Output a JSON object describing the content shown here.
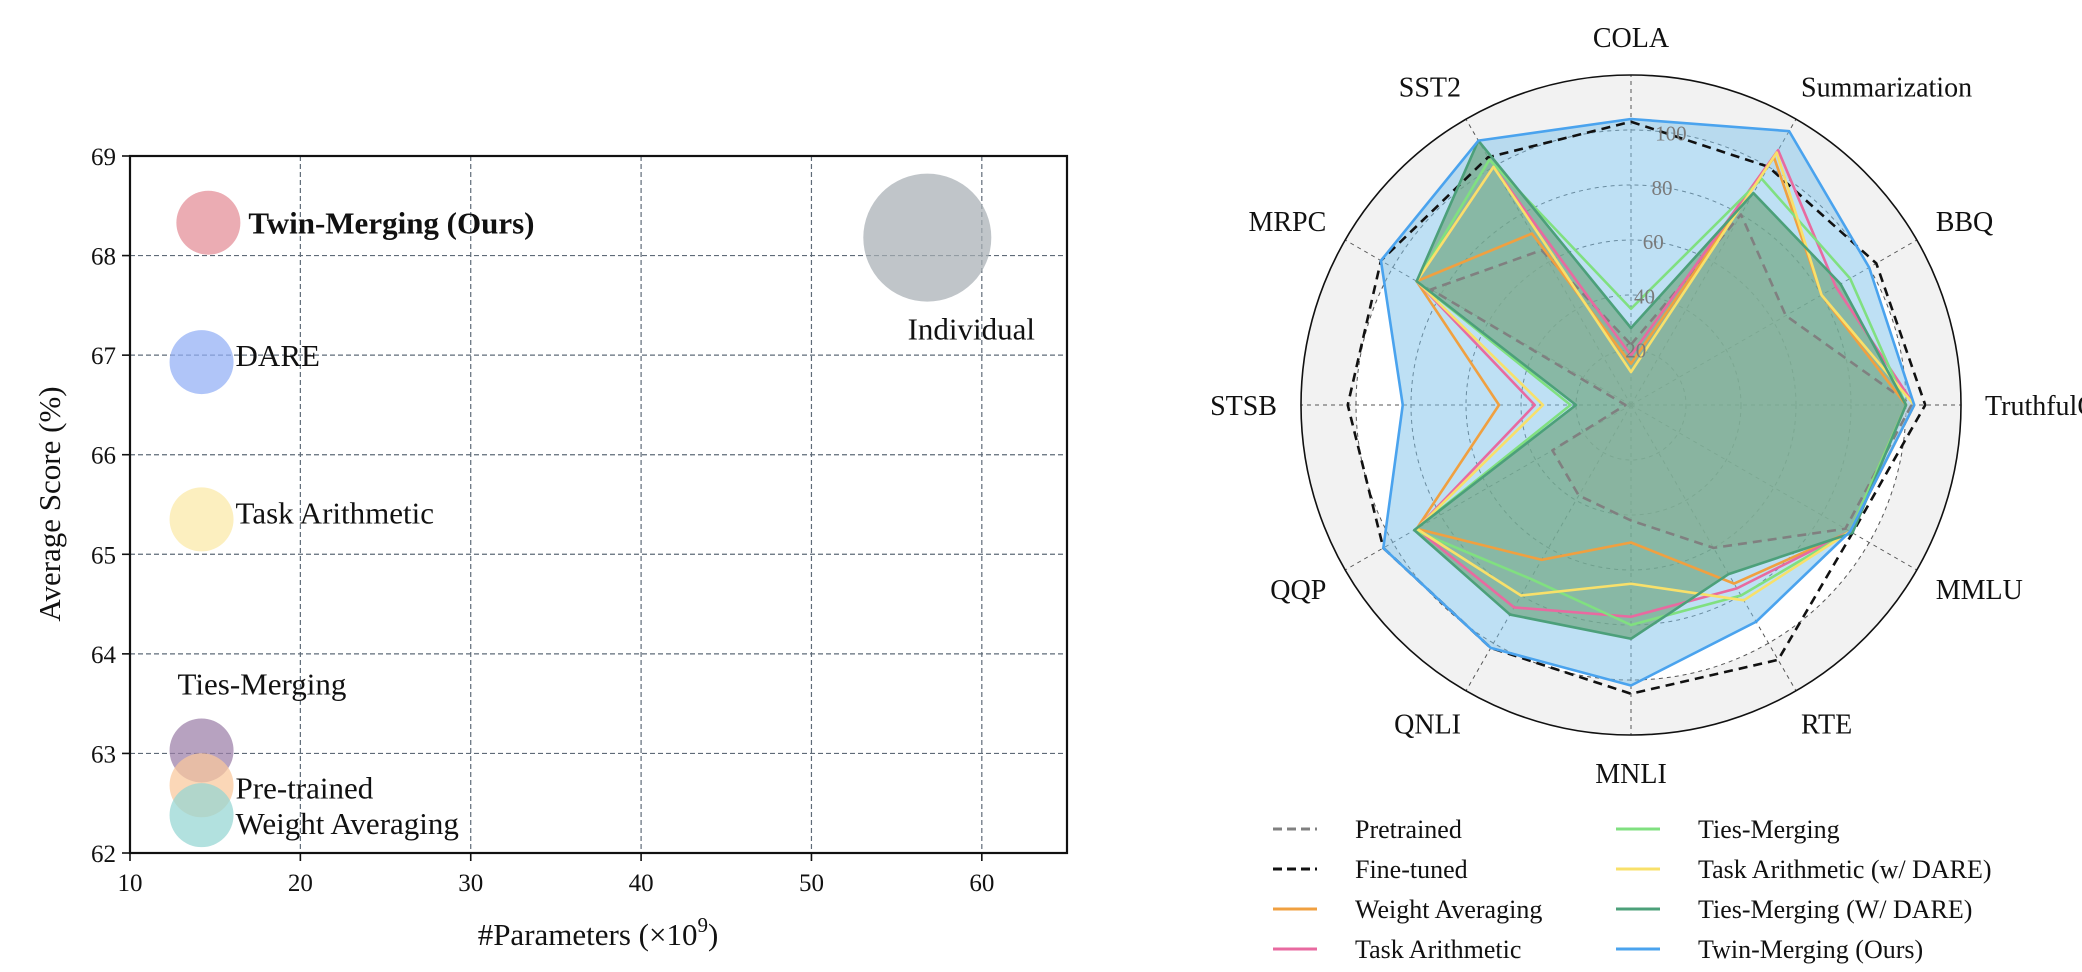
{
  "chart_data": [
    {
      "type": "scatter",
      "xlabel": "#Parameters (×10",
      "xlabel_sup": "9",
      "xlabel_end": ")",
      "ylabel": "Average Score (%)",
      "xlim": [
        10,
        65
      ],
      "ylim": [
        62,
        69
      ],
      "x_ticks": [
        "10",
        "20",
        "30",
        "40",
        "50",
        "60"
      ],
      "y_ticks": [
        "62",
        "63",
        "64",
        "65",
        "66",
        "67",
        "68",
        "69"
      ],
      "grid": true,
      "points": [
        {
          "label": "Twin-Merging (Ours)",
          "x": 14.6,
          "y": 68.33,
          "size": 1.0,
          "color": "#e38c95",
          "bold": true
        },
        {
          "label": "DARE",
          "x": 14.2,
          "y": 66.93,
          "size": 1.0,
          "color": "#92aef5"
        },
        {
          "label": "Task Arithmetic",
          "x": 14.2,
          "y": 65.35,
          "size": 1.0,
          "color": "#fbe9a6"
        },
        {
          "label": "Ties-Merging",
          "x": 14.2,
          "y": 63.03,
          "size": 1.0,
          "color": "#9b7ea7"
        },
        {
          "label": "Pre-trained",
          "x": 14.2,
          "y": 62.68,
          "size": 1.0,
          "color": "#f9c89b"
        },
        {
          "label": "Weight Averaging",
          "x": 14.2,
          "y": 62.38,
          "size": 1.0,
          "color": "#94d5d2"
        },
        {
          "label": "Individual",
          "x": 56.8,
          "y": 68.18,
          "size": 2.0,
          "color": "#a8aeb4"
        }
      ]
    },
    {
      "type": "radar",
      "categories": [
        "COLA",
        "Summarization",
        "BBQ",
        "TruthfulQA",
        "MMLU",
        "RTE",
        "MNLI",
        "QNLI",
        "QQP",
        "STSB",
        "MRPC",
        "SST2"
      ],
      "r_ticks": [
        "20",
        "40",
        "60",
        "80",
        "100"
      ],
      "r_max": 120,
      "series": [
        {
          "name": "Pretrained",
          "color": "#808080",
          "dash": "dashed",
          "fill": false,
          "values": [
            22,
            80,
            65,
            102,
            90,
            60,
            42,
            38,
            33,
            2,
            84,
            65
          ]
        },
        {
          "name": "Fine-tuned",
          "color": "#111111",
          "dash": "dashed",
          "fill": false,
          "values": [
            103,
            100,
            103,
            107,
            93,
            107,
            105,
            102,
            104,
            103,
            105,
            104
          ]
        },
        {
          "name": "Weight Averaging",
          "color": "#f0a040",
          "dash": "solid",
          "fill": false,
          "values": [
            15,
            104,
            80,
            100,
            92,
            75,
            50,
            65,
            90,
            48,
            90,
            72
          ]
        },
        {
          "name": "Task Arithmetic",
          "color": "#e86aa0",
          "dash": "solid",
          "fill": false,
          "values": [
            18,
            107,
            86,
            103,
            92,
            77,
            77,
            85,
            90,
            35,
            90,
            100
          ]
        },
        {
          "name": "Ties-Merging",
          "color": "#80e080",
          "dash": "solid",
          "fill": false,
          "values": [
            35,
            95,
            92,
            100,
            92,
            80,
            80,
            73,
            91,
            22,
            90,
            103
          ]
        },
        {
          "name": "Task Arithmetic (w/ DARE)",
          "color": "#f8e06a",
          "dash": "solid",
          "fill": false,
          "values": [
            12,
            106,
            80,
            103,
            92,
            82,
            65,
            80,
            90,
            32,
            90,
            100
          ]
        },
        {
          "name": "Ties-Merging (W/ DARE)",
          "color": "#4ca07a",
          "dash": "solid",
          "fill": true,
          "values": [
            28,
            89,
            88,
            100,
            93,
            71,
            85,
            88,
            91,
            20,
            90,
            111
          ]
        },
        {
          "name": "Twin-Merging (Ours)",
          "color": "#4aa3ee",
          "dash": "solid",
          "fill": true,
          "values": [
            104,
            115,
            100,
            103,
            92,
            91,
            102,
            102,
            104,
            83,
            105,
            111
          ]
        }
      ],
      "legend": "bottom"
    }
  ]
}
